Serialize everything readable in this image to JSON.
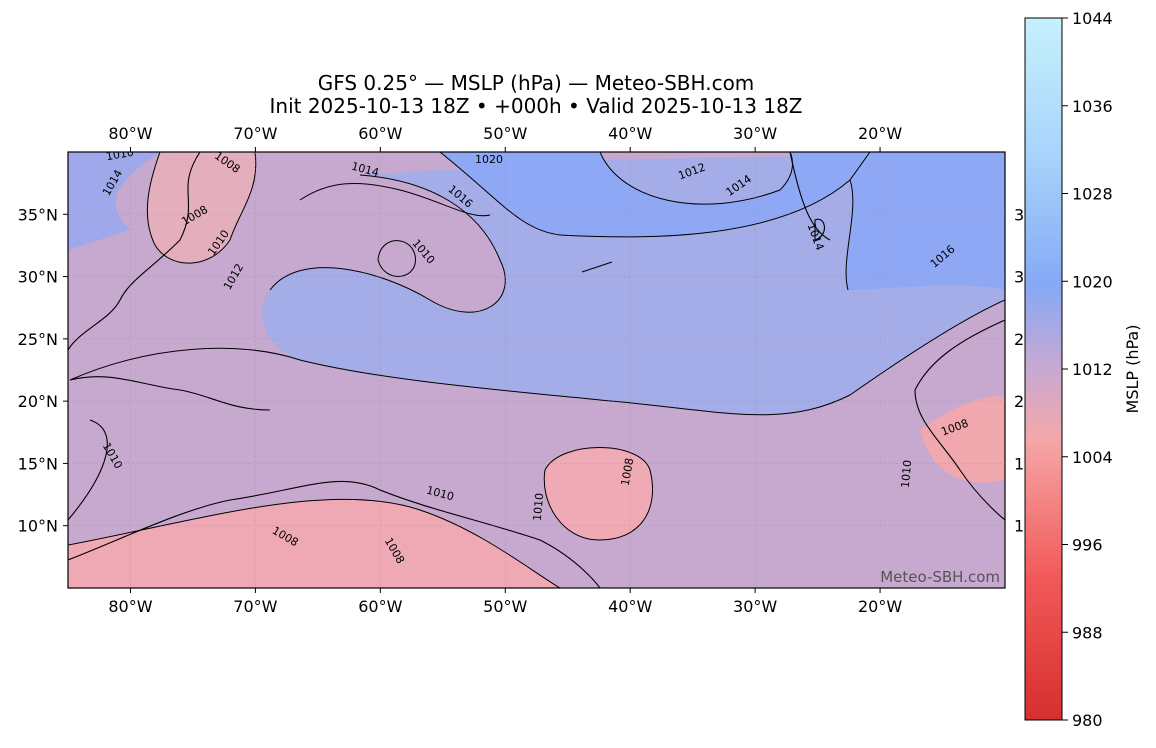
{
  "title": "GFS 0.25° — MSLP (hPa) — Meteo-SBH.com",
  "subtitle": "Init 2025-10-13 18Z • +000h • Valid 2025-10-13 18Z",
  "map": {
    "lon_range": [
      -85,
      -10
    ],
    "lat_range": [
      5,
      40
    ],
    "lon_ticks": [
      {
        "value": -80,
        "label": "80°W"
      },
      {
        "value": -70,
        "label": "70°W"
      },
      {
        "value": -60,
        "label": "60°W"
      },
      {
        "value": -50,
        "label": "50°W"
      },
      {
        "value": -40,
        "label": "40°W"
      },
      {
        "value": -30,
        "label": "30°W"
      },
      {
        "value": -20,
        "label": "20°W"
      }
    ],
    "lat_ticks": [
      {
        "value": 35,
        "label": "35°N"
      },
      {
        "value": 30,
        "label": "30°N"
      },
      {
        "value": 25,
        "label": "25°N"
      },
      {
        "value": 20,
        "label": "20°N"
      },
      {
        "value": 15,
        "label": "15°N"
      },
      {
        "value": 10,
        "label": "10°N"
      }
    ],
    "clipped_right_labels": [
      "3",
      "3",
      "2",
      "2",
      "1",
      "1"
    ]
  },
  "contour_labels": [
    1010,
    1014,
    1008,
    1008,
    1010,
    1012,
    1020,
    1014,
    1016,
    1010,
    1012,
    1014,
    1014,
    1016,
    1010,
    1010,
    1010,
    1008,
    1008,
    1010,
    1008,
    1008
  ],
  "watermark": "Meteo-SBH.com",
  "colorbar": {
    "label": "MSLP (hPa)",
    "lim": [
      980,
      1044
    ],
    "ticks": [
      980,
      988,
      996,
      1004,
      1012,
      1020,
      1028,
      1036,
      1044
    ]
  }
}
